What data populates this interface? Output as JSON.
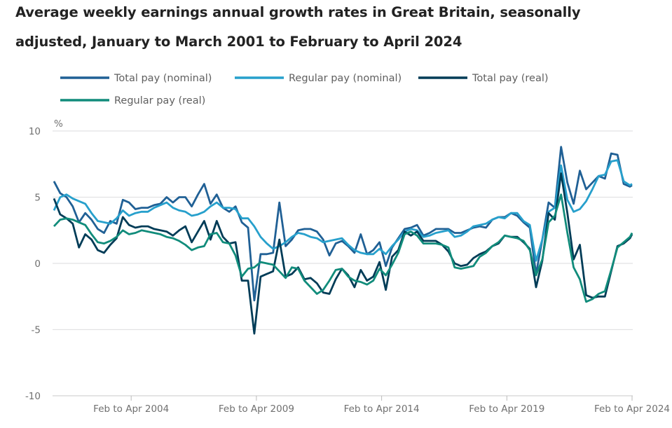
{
  "title_line1": "Average weekly earnings annual growth rates in Great Britain, seasonally",
  "title_line2": "adjusted, January to March 2001 to February to April 2024",
  "chart_data": {
    "type": "line",
    "title": "Average weekly earnings annual growth rates in Great Britain, seasonally adjusted, January to March 2001 to February to April 2024",
    "ylabel": "%",
    "ylim": [
      -10,
      10
    ],
    "yticks": [
      "10",
      "5",
      "0",
      "-5",
      "-10"
    ],
    "ytick_values": [
      10,
      5,
      0,
      -5,
      -10
    ],
    "xticks": [
      "Feb to Apr 2004",
      "Feb to Apr 2009",
      "Feb to Apr 2014",
      "Feb to Apr 2019",
      "Feb to Apr 2024"
    ],
    "grid": true,
    "legend_position": "top-left",
    "x": [
      "Jan to Mar 2001",
      "Apr to Jun 2001",
      "Jul to Sep 2001",
      "Oct to Dec 2001",
      "Jan to Mar 2002",
      "Apr to Jun 2002",
      "Jul to Sep 2002",
      "Oct to Dec 2002",
      "Jan to Mar 2003",
      "Apr to Jun 2003",
      "Jul to Sep 2003",
      "Oct to Dec 2003",
      "Jan to Mar 2004",
      "Apr to Jun 2004",
      "Jul to Sep 2004",
      "Oct to Dec 2004",
      "Jan to Mar 2005",
      "Apr to Jun 2005",
      "Jul to Sep 2005",
      "Oct to Dec 2005",
      "Jan to Mar 2006",
      "Apr to Jun 2006",
      "Jul to Sep 2006",
      "Oct to Dec 2006",
      "Jan to Mar 2007",
      "Apr to Jun 2007",
      "Jul to Sep 2007",
      "Oct to Dec 2007",
      "Jan to Mar 2008",
      "Apr to Jun 2008",
      "Jul to Sep 2008",
      "Oct to Dec 2008",
      "Jan to Mar 2009",
      "Apr to Jun 2009",
      "Jul to Sep 2009",
      "Oct to Dec 2009",
      "Jan to Mar 2010",
      "Apr to Jun 2010",
      "Jul to Sep 2010",
      "Oct to Dec 2010",
      "Jan to Mar 2011",
      "Apr to Jun 2011",
      "Jul to Sep 2011",
      "Oct to Dec 2011",
      "Jan to Mar 2012",
      "Apr to Jun 2012",
      "Jul to Sep 2012",
      "Oct to Dec 2012",
      "Jan to Mar 2013",
      "Apr to Jun 2013",
      "Jul to Sep 2013",
      "Oct to Dec 2013",
      "Jan to Mar 2014",
      "Apr to Jun 2014",
      "Jul to Sep 2014",
      "Oct to Dec 2014",
      "Jan to Mar 2015",
      "Apr to Jun 2015",
      "Jul to Sep 2015",
      "Oct to Dec 2015",
      "Jan to Mar 2016",
      "Apr to Jun 2016",
      "Jul to Sep 2016",
      "Oct to Dec 2016",
      "Jan to Mar 2017",
      "Apr to Jun 2017",
      "Jul to Sep 2017",
      "Oct to Dec 2017",
      "Jan to Mar 2018",
      "Apr to Jun 2018",
      "Jul to Sep 2018",
      "Oct to Dec 2018",
      "Jan to Mar 2019",
      "Apr to Jun 2019",
      "Jul to Sep 2019",
      "Oct to Dec 2019",
      "Jan to Mar 2020",
      "Apr to Jun 2020",
      "Jul to Sep 2020",
      "Oct to Dec 2020",
      "Jan to Mar 2021",
      "Apr to Jun 2021",
      "Jul to Sep 2021",
      "Oct to Dec 2021",
      "Jan to Mar 2022",
      "Apr to Jun 2022",
      "Jul to Sep 2022",
      "Oct to Dec 2022",
      "Jan to Mar 2023",
      "Apr to Jun 2023",
      "Jul to Sep 2023",
      "Oct to Dec 2023",
      "Jan to Mar 2024",
      "Feb to Apr 2024"
    ],
    "series": [
      {
        "name": "Total pay (nominal)",
        "color": "#206095",
        "values": [
          6.2,
          5.3,
          5.0,
          4.3,
          3.1,
          3.8,
          3.3,
          2.6,
          2.3,
          3.2,
          3.0,
          4.8,
          4.6,
          4.1,
          4.2,
          4.2,
          4.4,
          4.5,
          5.0,
          4.6,
          5.0,
          5.0,
          4.3,
          5.2,
          6.0,
          4.5,
          5.2,
          4.2,
          3.9,
          4.3,
          3.1,
          2.7,
          -2.8,
          0.7,
          0.7,
          0.8,
          4.6,
          1.3,
          1.8,
          2.5,
          2.6,
          2.6,
          2.4,
          1.8,
          0.6,
          1.5,
          1.7,
          1.3,
          0.8,
          2.2,
          0.7,
          1.0,
          1.6,
          -0.2,
          1.2,
          1.9,
          2.6,
          2.7,
          2.9,
          2.1,
          2.3,
          2.6,
          2.6,
          2.6,
          2.3,
          2.3,
          2.5,
          2.7,
          2.8,
          2.7,
          3.3,
          3.5,
          3.5,
          3.8,
          3.6,
          3.1,
          2.7,
          -0.8,
          1.8,
          4.6,
          4.2,
          8.8,
          6.1,
          4.5,
          7.0,
          5.6,
          6.1,
          6.6,
          6.4,
          8.3,
          8.2,
          6.0,
          5.8,
          5.9
        ]
      },
      {
        "name": "Regular pay (nominal)",
        "color": "#27a0cc",
        "values": [
          4.0,
          5.0,
          5.2,
          4.9,
          4.7,
          4.5,
          3.8,
          3.2,
          3.1,
          3.0,
          3.4,
          4.0,
          3.6,
          3.8,
          3.9,
          3.9,
          4.2,
          4.4,
          4.6,
          4.2,
          4.0,
          3.9,
          3.6,
          3.7,
          3.9,
          4.3,
          4.6,
          4.2,
          4.2,
          4.1,
          3.4,
          3.4,
          2.8,
          2.0,
          1.5,
          1.1,
          1.3,
          1.6,
          2.0,
          2.3,
          2.2,
          2.0,
          1.9,
          1.6,
          1.7,
          1.8,
          1.9,
          1.4,
          1.0,
          0.8,
          0.7,
          0.7,
          1.1,
          0.7,
          1.3,
          1.8,
          2.4,
          2.6,
          2.5,
          2.0,
          2.1,
          2.3,
          2.4,
          2.5,
          2.0,
          2.1,
          2.4,
          2.8,
          2.9,
          3.0,
          3.3,
          3.5,
          3.4,
          3.8,
          3.8,
          3.2,
          2.9,
          0.2,
          1.8,
          3.9,
          4.2,
          7.4,
          4.8,
          3.9,
          4.1,
          4.7,
          5.6,
          6.6,
          6.7,
          7.7,
          7.8,
          6.2,
          5.9,
          6.0
        ]
      },
      {
        "name": "Total pay (real)",
        "color": "#003c57",
        "values": [
          4.9,
          3.7,
          3.4,
          3.0,
          1.2,
          2.2,
          1.8,
          1.0,
          0.8,
          1.4,
          1.9,
          3.5,
          2.9,
          2.7,
          2.8,
          2.8,
          2.6,
          2.5,
          2.4,
          2.1,
          2.5,
          2.8,
          1.6,
          2.4,
          3.2,
          1.8,
          3.2,
          2.0,
          1.5,
          1.6,
          -1.3,
          -1.3,
          -5.3,
          -1.0,
          -0.8,
          -0.6,
          1.8,
          -1.0,
          -0.8,
          -0.3,
          -1.2,
          -1.1,
          -1.5,
          -2.2,
          -2.3,
          -1.2,
          -0.4,
          -0.9,
          -1.8,
          -0.5,
          -1.3,
          -1.0,
          0.1,
          -2.0,
          0.5,
          1.0,
          2.4,
          2.1,
          2.4,
          1.7,
          1.7,
          1.7,
          1.4,
          0.9,
          0.0,
          -0.2,
          -0.1,
          0.4,
          0.7,
          0.9,
          1.3,
          1.5,
          2.1,
          2.0,
          2.0,
          1.6,
          1.1,
          -1.8,
          0.2,
          3.8,
          3.3,
          6.8,
          3.8,
          0.3,
          1.4,
          -2.4,
          -2.6,
          -2.5,
          -2.5,
          -0.6,
          1.3,
          1.5,
          1.9,
          2.2
        ]
      },
      {
        "name": "Regular pay (real)",
        "color": "#118c7b",
        "values": [
          2.8,
          3.3,
          3.4,
          3.3,
          3.1,
          2.9,
          2.2,
          1.6,
          1.5,
          1.7,
          2.0,
          2.5,
          2.2,
          2.3,
          2.5,
          2.4,
          2.3,
          2.2,
          2.0,
          1.9,
          1.7,
          1.4,
          1.0,
          1.2,
          1.3,
          2.2,
          2.3,
          1.6,
          1.5,
          0.6,
          -1.0,
          -0.4,
          -0.3,
          0.1,
          0.0,
          -0.1,
          -0.6,
          -1.1,
          -0.3,
          -0.4,
          -1.3,
          -1.8,
          -2.3,
          -2.0,
          -1.3,
          -0.5,
          -0.4,
          -1.0,
          -1.3,
          -1.4,
          -1.6,
          -1.3,
          -0.4,
          -0.9,
          -0.1,
          0.8,
          2.2,
          2.4,
          2.1,
          1.5,
          1.5,
          1.5,
          1.4,
          1.2,
          -0.3,
          -0.4,
          -0.3,
          -0.2,
          0.5,
          0.8,
          1.3,
          1.6,
          2.1,
          2.0,
          1.9,
          1.7,
          1.0,
          -0.9,
          0.3,
          3.1,
          3.6,
          5.2,
          2.3,
          -0.3,
          -1.2,
          -2.9,
          -2.7,
          -2.3,
          -2.1,
          -0.5,
          1.2,
          1.6,
          2.0,
          2.3
        ]
      }
    ]
  }
}
